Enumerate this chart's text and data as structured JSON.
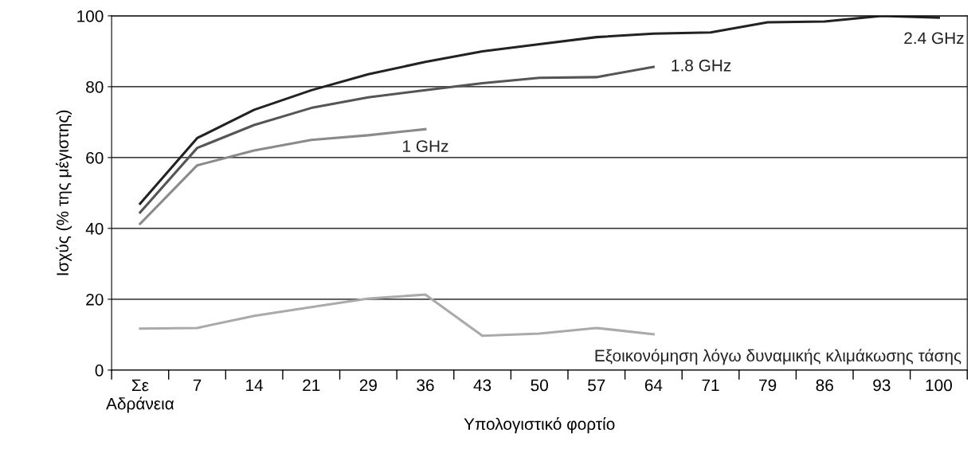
{
  "chart_data": {
    "type": "line",
    "xlabel": "Υπολογιστικό φορτίο",
    "ylabel": "Ισχύς (% της μέγιστης)",
    "categories": [
      "Σε\nΑδράνεια",
      "7",
      "14",
      "21",
      "29",
      "36",
      "43",
      "50",
      "57",
      "64",
      "71",
      "79",
      "86",
      "93",
      "100"
    ],
    "series": [
      {
        "name": "2.4 GHz",
        "color": "#222222",
        "values": [
          47,
          65.5,
          73.5,
          79,
          83.5,
          87,
          90,
          92,
          94,
          95,
          95.3,
          98.2,
          98.4,
          100,
          99.5
        ]
      },
      {
        "name": "1.8 GHz",
        "color": "#555555",
        "values": [
          44.5,
          62.7,
          69.2,
          74,
          77,
          79,
          81,
          82.5,
          82.7,
          85.6,
          null,
          null,
          null,
          null,
          null
        ]
      },
      {
        "name": "1 GHz",
        "color": "#8a8a8a",
        "values": [
          41.3,
          57.8,
          62,
          65,
          66.3,
          68,
          null,
          null,
          null,
          null,
          null,
          null,
          null,
          null,
          null
        ]
      },
      {
        "name": "Εξοικονόμηση λόγω δυναμικής κλιμάκωσης τάσης",
        "color": "#aaaaaa",
        "values": [
          11.7,
          11.9,
          15.3,
          17.8,
          20.2,
          21.3,
          9.7,
          10.3,
          11.9,
          10.1,
          null,
          null,
          null,
          null,
          null
        ]
      }
    ],
    "ylim": [
      0,
      100
    ],
    "yticks": [
      0,
      20,
      40,
      60,
      80,
      100
    ],
    "grid": "y",
    "legend": false,
    "marker": "none",
    "line_style": "solid"
  }
}
